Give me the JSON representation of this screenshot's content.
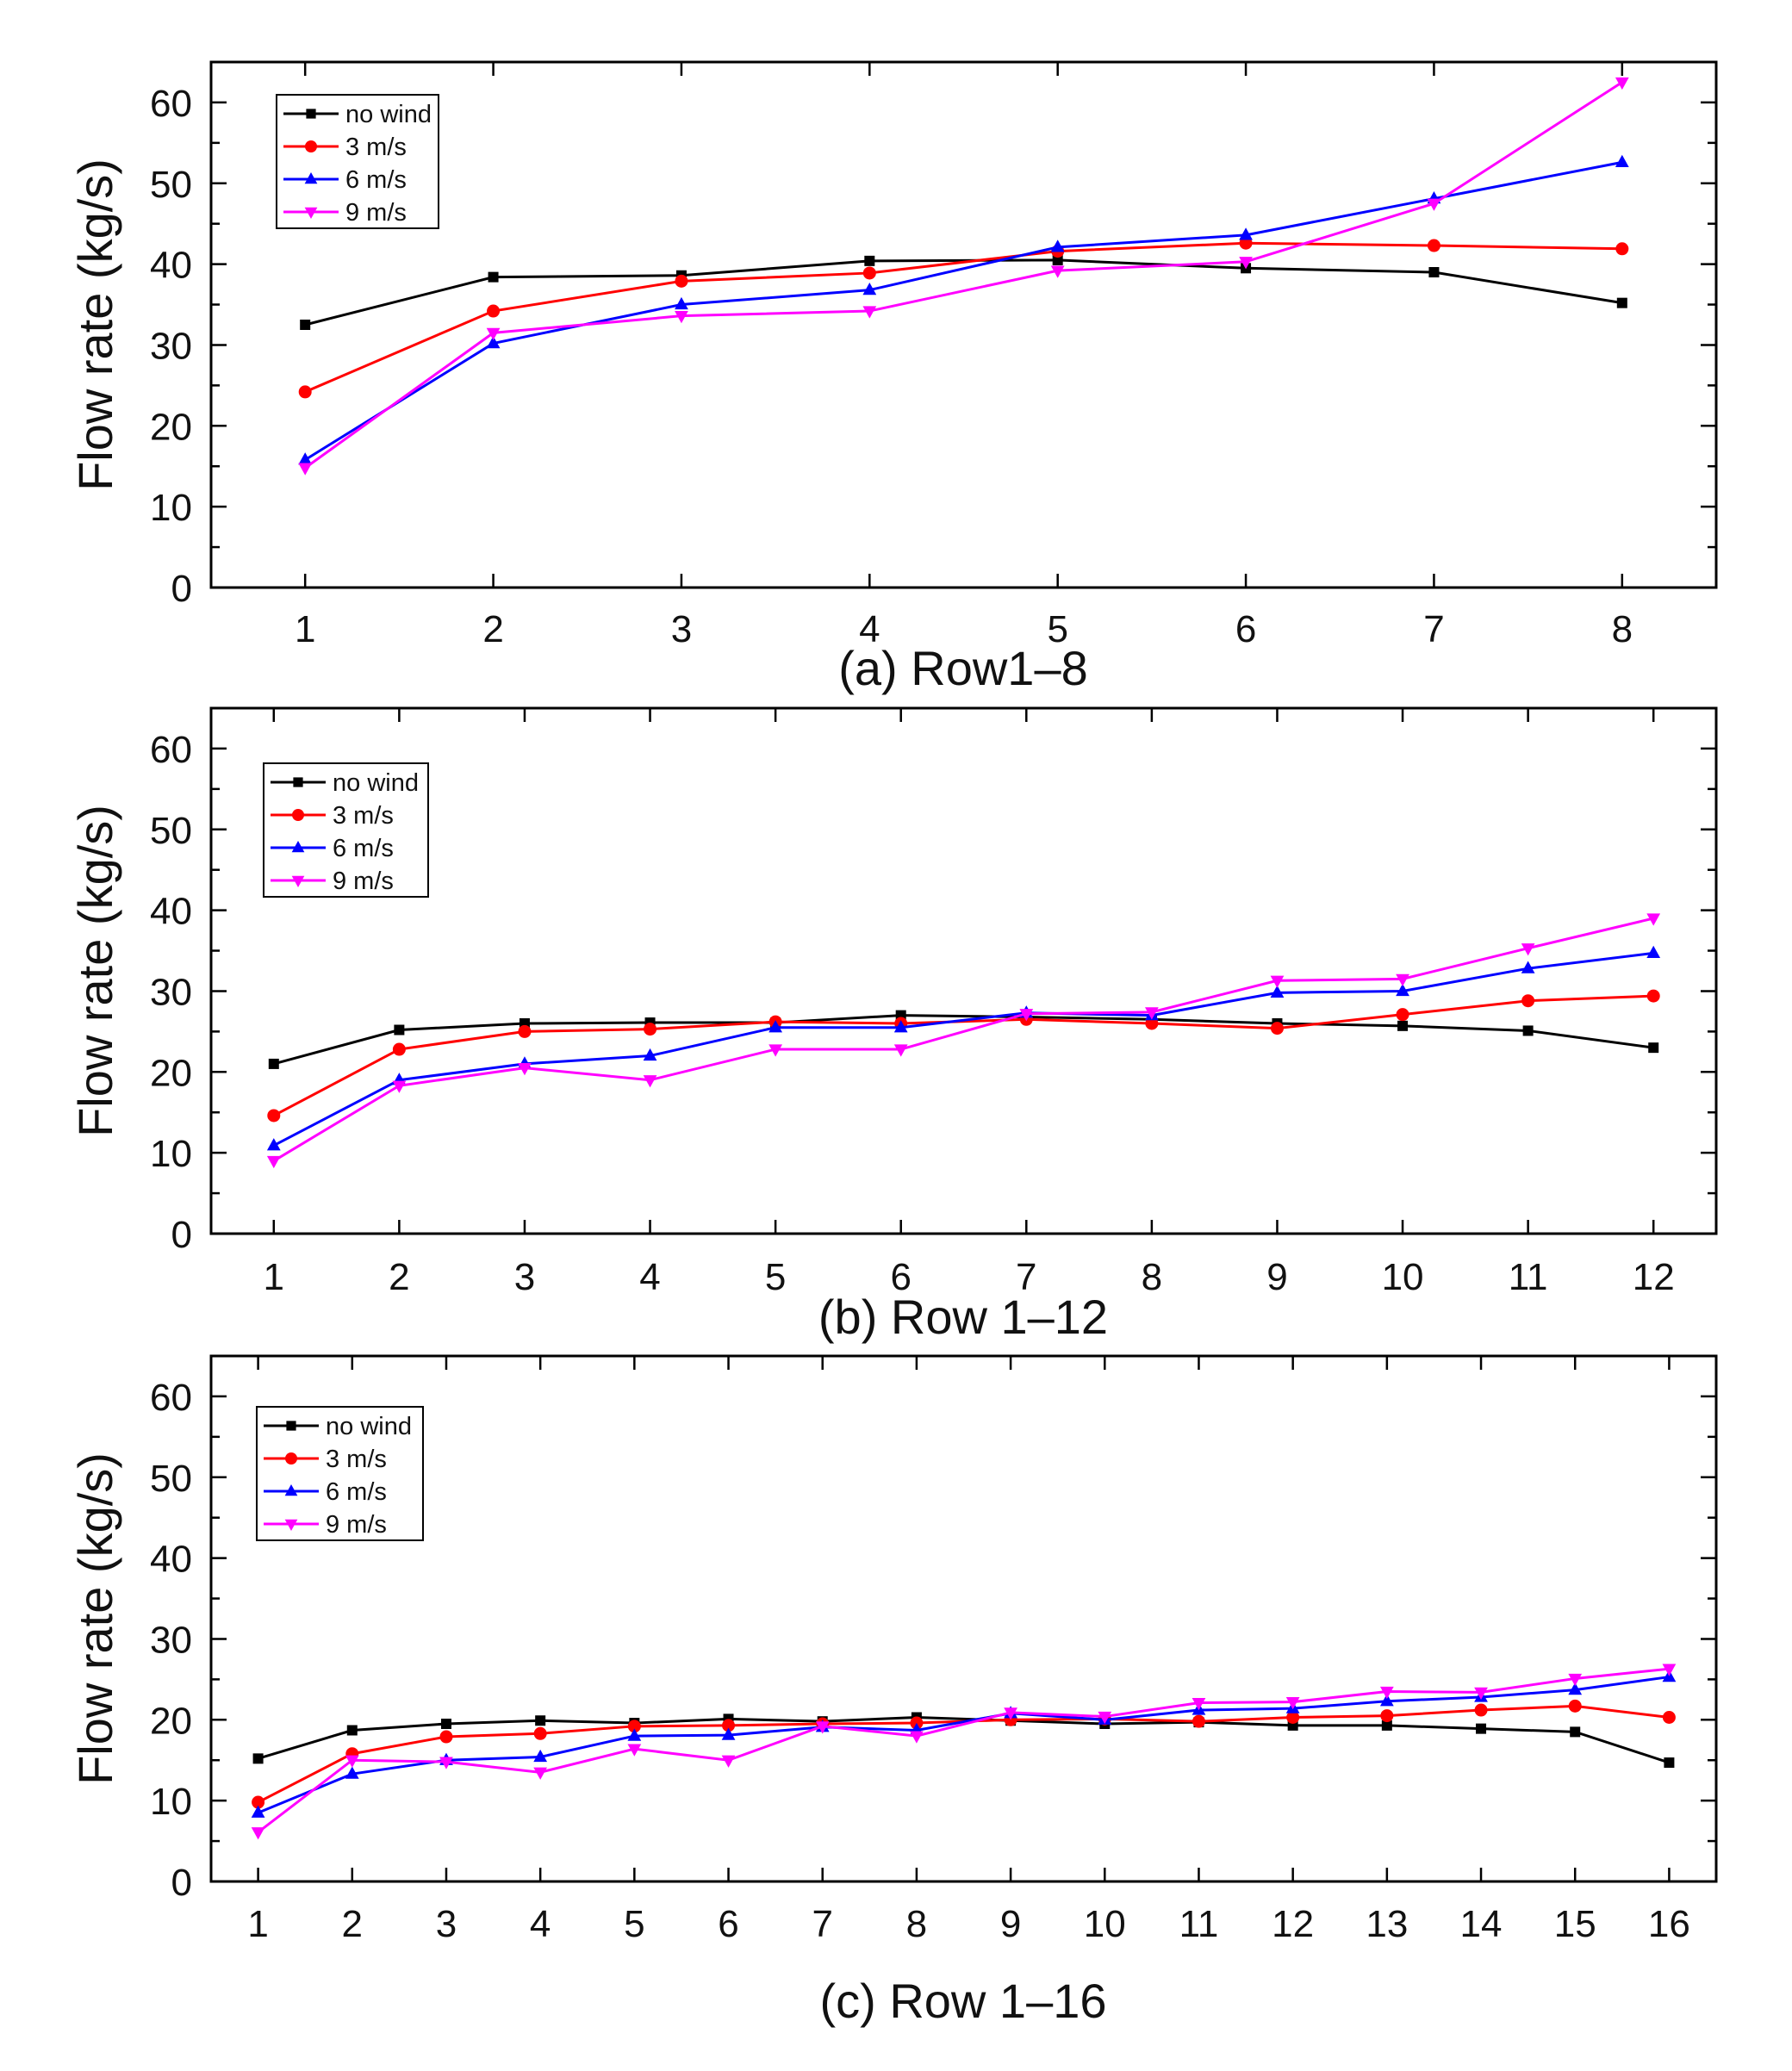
{
  "figure": {
    "series_styles": [
      {
        "name": "no wind",
        "color": "#000000",
        "marker": "square"
      },
      {
        "name": "3 m/s",
        "color": "#ff0000",
        "marker": "circle"
      },
      {
        "name": "6 m/s",
        "color": "#0000ff",
        "marker": "triangle-up"
      },
      {
        "name": "9 m/s",
        "color": "#ff00ff",
        "marker": "triangle-down"
      }
    ]
  },
  "chart_data": [
    {
      "type": "line",
      "caption": "(a) Row1–8",
      "ylabel": "Flow rate (kg/s)",
      "xlabel": "",
      "x": [
        1,
        2,
        3,
        4,
        5,
        6,
        7,
        8
      ],
      "xlim": [
        0.5,
        8.5
      ],
      "ylim": [
        0,
        65
      ],
      "yticks": [
        0,
        10,
        20,
        30,
        40,
        50,
        60
      ],
      "legend": "top-left",
      "series": [
        {
          "name": "no wind",
          "values": [
            32.5,
            38.4,
            38.6,
            40.4,
            40.5,
            39.5,
            39.0,
            35.2
          ]
        },
        {
          "name": "3 m/s",
          "values": [
            24.2,
            34.2,
            37.9,
            38.9,
            41.6,
            42.6,
            42.3,
            41.9
          ]
        },
        {
          "name": "6 m/s",
          "values": [
            15.8,
            30.2,
            35.0,
            36.8,
            42.1,
            43.6,
            48.1,
            52.6
          ]
        },
        {
          "name": "9 m/s",
          "values": [
            14.8,
            31.5,
            33.6,
            34.2,
            39.2,
            40.3,
            47.5,
            62.5
          ]
        }
      ]
    },
    {
      "type": "line",
      "caption": "(b) Row 1–12",
      "ylabel": "Flow rate (kg/s)",
      "xlabel": "",
      "x": [
        1,
        2,
        3,
        4,
        5,
        6,
        7,
        8,
        9,
        10,
        11,
        12
      ],
      "xlim": [
        0.5,
        12.5
      ],
      "ylim": [
        0,
        65
      ],
      "yticks": [
        0,
        10,
        20,
        30,
        40,
        50,
        60
      ],
      "legend": "top-left",
      "series": [
        {
          "name": "no wind",
          "values": [
            21.0,
            25.2,
            26.0,
            26.1,
            26.1,
            27.0,
            26.8,
            26.5,
            26.0,
            25.7,
            25.1,
            23.0
          ]
        },
        {
          "name": "3 m/s",
          "values": [
            14.6,
            22.8,
            25.0,
            25.3,
            26.2,
            26.0,
            26.5,
            26.0,
            25.4,
            27.1,
            28.8,
            29.4
          ]
        },
        {
          "name": "6 m/s",
          "values": [
            10.9,
            19.0,
            21.0,
            22.0,
            25.5,
            25.5,
            27.3,
            27.0,
            29.8,
            30.0,
            32.8,
            34.7
          ]
        },
        {
          "name": "9 m/s",
          "values": [
            9.0,
            18.3,
            20.5,
            19.0,
            22.8,
            22.8,
            27.2,
            27.4,
            31.3,
            31.5,
            35.3,
            39.0
          ]
        }
      ]
    },
    {
      "type": "line",
      "caption": "(c) Row 1–16",
      "ylabel": "Flow rate (kg/s)",
      "xlabel": "",
      "x": [
        1,
        2,
        3,
        4,
        5,
        6,
        7,
        8,
        9,
        10,
        11,
        12,
        13,
        14,
        15,
        16
      ],
      "xlim": [
        0.5,
        16.5
      ],
      "ylim": [
        0,
        65
      ],
      "yticks": [
        0,
        10,
        20,
        30,
        40,
        50,
        60
      ],
      "legend": "top-left",
      "series": [
        {
          "name": "no wind",
          "values": [
            15.2,
            18.7,
            19.5,
            19.9,
            19.6,
            20.1,
            19.8,
            20.3,
            19.9,
            19.5,
            19.7,
            19.3,
            19.3,
            18.9,
            18.5,
            14.7
          ]
        },
        {
          "name": "3 m/s",
          "values": [
            9.8,
            15.8,
            17.9,
            18.3,
            19.2,
            19.3,
            19.5,
            19.6,
            20.0,
            20.1,
            19.8,
            20.3,
            20.5,
            21.2,
            21.7,
            20.3
          ]
        },
        {
          "name": "6 m/s",
          "values": [
            8.5,
            13.3,
            15.0,
            15.4,
            18.0,
            18.1,
            19.1,
            18.7,
            20.8,
            20.0,
            21.2,
            21.4,
            22.3,
            22.8,
            23.7,
            25.3
          ]
        },
        {
          "name": "9 m/s",
          "values": [
            6.1,
            15.0,
            14.8,
            13.5,
            16.4,
            15.0,
            19.2,
            18.0,
            20.9,
            20.4,
            22.1,
            22.2,
            23.5,
            23.4,
            25.1,
            26.3
          ]
        }
      ]
    }
  ]
}
